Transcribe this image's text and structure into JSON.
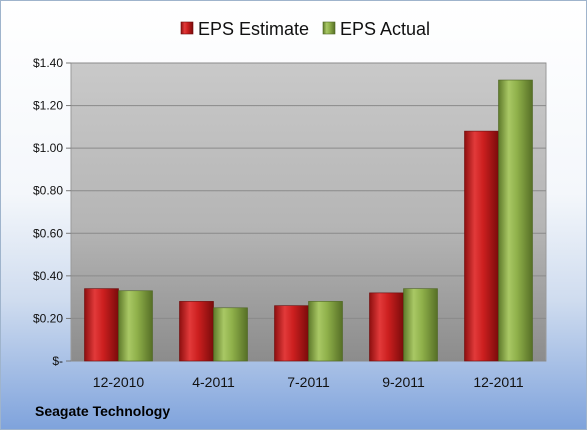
{
  "chart_data": {
    "type": "bar",
    "title": "",
    "xlabel": "",
    "ylabel": "",
    "categories": [
      "12-2010",
      "4-2011",
      "7-2011",
      "9-2011",
      "12-2011"
    ],
    "series": [
      {
        "name": "EPS Estimate",
        "values": [
          0.34,
          0.28,
          0.26,
          0.32,
          1.08
        ],
        "color": "#cc1f1f"
      },
      {
        "name": "EPS Actual",
        "values": [
          0.33,
          0.25,
          0.28,
          0.34,
          1.32
        ],
        "color": "#8fb04a"
      }
    ],
    "ylim": [
      0,
      1.4
    ],
    "yticks": [
      {
        "value": 0,
        "label": "$-"
      },
      {
        "value": 0.2,
        "label": "$0.20"
      },
      {
        "value": 0.4,
        "label": "$0.40"
      },
      {
        "value": 0.6,
        "label": "$0.60"
      },
      {
        "value": 0.8,
        "label": "$0.80"
      },
      {
        "value": 1.0,
        "label": "$1.00"
      },
      {
        "value": 1.2,
        "label": "$1.20"
      },
      {
        "value": 1.4,
        "label": "$1.40"
      }
    ],
    "grid": true,
    "legend_position": "top-center"
  },
  "footer": {
    "company": "Seagate Technology"
  }
}
